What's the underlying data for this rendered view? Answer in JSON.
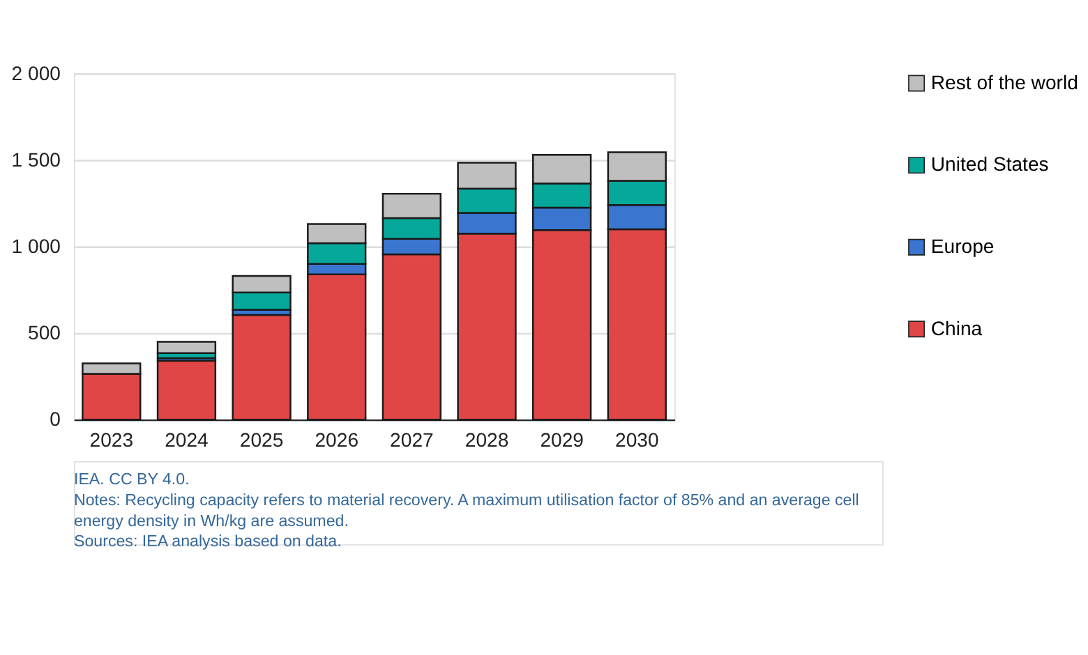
{
  "chart_data": {
    "type": "bar",
    "stacked": true,
    "categories": [
      "2023",
      "2024",
      "2025",
      "2026",
      "2027",
      "2028",
      "2029",
      "2030"
    ],
    "series": [
      {
        "name": "China",
        "color": "#e04646",
        "values": [
          265,
          340,
          605,
          840,
          955,
          1075,
          1095,
          1100
        ]
      },
      {
        "name": "Europe",
        "color": "#3a75d0",
        "values": [
          null,
          15,
          30,
          60,
          90,
          120,
          130,
          140
        ]
      },
      {
        "name": "United States",
        "color": "#06a89a",
        "values": [
          null,
          30,
          100,
          120,
          120,
          140,
          140,
          140
        ]
      },
      {
        "name": "Rest of the world",
        "color": "#bfbfbf",
        "values": [
          60,
          65,
          95,
          110,
          140,
          150,
          165,
          165
        ]
      }
    ],
    "ylim": [
      0,
      2000
    ],
    "yticks": [
      0,
      500,
      {
        "value": 1000,
        "label": "1 000"
      },
      {
        "value": 1500,
        "label": "1 500"
      },
      {
        "value": 2000,
        "label": "2 000"
      }
    ],
    "grid": "y",
    "legend": "right",
    "annotations": [
      "IEA. CC BY 4.0.",
      "Notes: Recycling capacity refers to material recovery. A maximum utilisation factor of 85% and an average cell",
      "energy density in Wh/kg are assumed.",
      "Sources: IEA analysis based on data."
    ]
  }
}
